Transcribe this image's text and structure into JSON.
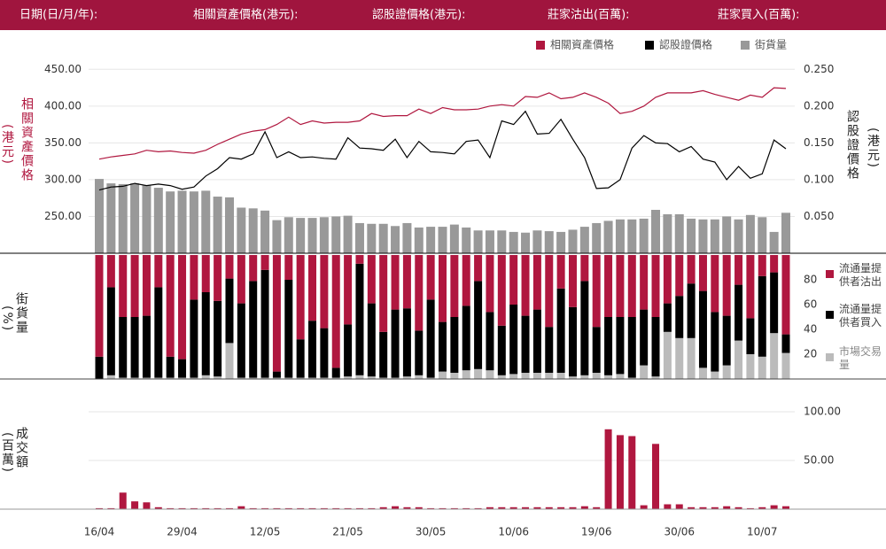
{
  "header": {
    "items": [
      "日期(日/月/年):",
      "相關資產價格(港元):",
      "認股證價格(港元):",
      "莊家沽出(百萬):",
      "莊家買入(百萬):"
    ]
  },
  "chart_data": [
    {
      "type": "line",
      "ylabel": "相關資產價格",
      "ylabel_unit": "(港元)",
      "y2label": "認股證價格",
      "y2label_unit": "(港元)",
      "ylim": [
        200,
        460
      ],
      "yticks": [
        {
          "value": 250,
          "label": "250.00"
        },
        {
          "value": 300,
          "label": "300.00"
        },
        {
          "value": 350,
          "label": "350.00"
        },
        {
          "value": 400,
          "label": "400.00"
        },
        {
          "value": 450,
          "label": "450.00"
        }
      ],
      "y2lim": [
        0,
        0.26
      ],
      "y2ticks": [
        {
          "value": 0.05,
          "label": "0.050"
        },
        {
          "value": 0.1,
          "label": "0.100"
        },
        {
          "value": 0.15,
          "label": "0.150"
        },
        {
          "value": 0.2,
          "label": "0.200"
        },
        {
          "value": 0.25,
          "label": "0.250"
        }
      ],
      "grid": true,
      "series": [
        {
          "name": "相關資產價格",
          "color": "#b0173f",
          "values": [
            328,
            331,
            333,
            335,
            340,
            338,
            339,
            337,
            336,
            340,
            348,
            355,
            362,
            366,
            368,
            375,
            385,
            375,
            380,
            377,
            378,
            378,
            380,
            390,
            386,
            387,
            387,
            396,
            390,
            398,
            395,
            395,
            396,
            400,
            402,
            400,
            413,
            412,
            418,
            410,
            412,
            418,
            412,
            404,
            390,
            393,
            400,
            412,
            418,
            418,
            418,
            421,
            416,
            412,
            408,
            415,
            412,
            425,
            424
          ]
        },
        {
          "name": "認股證價格",
          "color": "#000000",
          "axis": "y2",
          "values": [
            0.086,
            0.09,
            0.091,
            0.095,
            0.092,
            0.094,
            0.092,
            0.087,
            0.09,
            0.105,
            0.115,
            0.13,
            0.128,
            0.135,
            0.165,
            0.13,
            0.138,
            0.13,
            0.131,
            0.129,
            0.128,
            0.157,
            0.143,
            0.142,
            0.14,
            0.155,
            0.13,
            0.152,
            0.138,
            0.137,
            0.135,
            0.152,
            0.154,
            0.13,
            0.18,
            0.175,
            0.193,
            0.162,
            0.163,
            0.182,
            0.155,
            0.13,
            0.088,
            0.089,
            0.1,
            0.143,
            0.16,
            0.15,
            0.149,
            0.138,
            0.145,
            0.128,
            0.124,
            0.1,
            0.118,
            0.102,
            0.108,
            0.154,
            0.142
          ]
        },
        {
          "name": "街貨量",
          "color": "#999999",
          "type": "bar",
          "values": [
            301,
            295,
            294,
            295,
            292,
            289,
            284,
            285,
            284,
            285,
            277,
            276,
            262,
            261,
            258,
            245,
            249,
            248,
            248,
            249,
            250,
            251,
            241,
            240,
            240,
            237,
            241,
            235,
            236,
            236,
            239,
            235,
            231,
            231,
            231,
            229,
            228,
            231,
            230,
            229,
            232,
            236,
            241,
            244,
            246,
            246,
            247,
            259,
            253,
            253,
            247,
            246,
            246,
            250,
            246,
            252,
            249,
            229,
            255
          ]
        }
      ]
    },
    {
      "type": "stacked_bar",
      "ylabel": "街貨量",
      "ylabel_unit": "(%)",
      "ylim": [
        0,
        100
      ],
      "yticks": [
        20,
        40,
        60,
        80
      ],
      "series": [
        {
          "name": "市場交易量",
          "color": "#bbbbbb",
          "values": [
            0,
            3,
            1,
            1,
            1,
            1,
            1,
            1,
            1,
            3,
            2,
            29,
            1,
            1,
            1,
            1,
            1,
            1,
            1,
            1,
            1,
            2,
            3,
            2,
            1,
            1,
            2,
            3,
            1,
            6,
            5,
            7,
            8,
            7,
            3,
            4,
            5,
            5,
            5,
            5,
            2,
            3,
            5,
            3,
            4,
            1,
            11,
            2,
            38,
            33,
            33,
            9,
            6,
            11,
            31,
            20,
            18,
            37,
            21
          ]
        },
        {
          "name": "流通量提供者買入",
          "color": "#000000",
          "values": [
            18,
            71,
            49,
            49,
            50,
            73,
            17,
            15,
            63,
            67,
            61,
            52,
            60,
            78,
            87,
            5,
            79,
            31,
            46,
            40,
            8,
            42,
            90,
            59,
            37,
            55,
            55,
            36,
            63,
            40,
            45,
            52,
            71,
            47,
            40,
            56,
            46,
            51,
            37,
            68,
            56,
            76,
            37,
            47,
            46,
            49,
            45,
            48,
            23,
            34,
            44,
            62,
            48,
            40,
            45,
            29,
            65,
            49,
            15
          ]
        },
        {
          "name": "流通量提供者沽出",
          "color": "#b0173f",
          "values": [
            82,
            26,
            50,
            50,
            49,
            26,
            82,
            84,
            36,
            30,
            37,
            19,
            39,
            21,
            12,
            94,
            20,
            68,
            53,
            59,
            91,
            56,
            7,
            39,
            62,
            44,
            43,
            61,
            36,
            54,
            50,
            41,
            21,
            46,
            57,
            40,
            49,
            44,
            58,
            27,
            42,
            21,
            58,
            50,
            50,
            50,
            44,
            50,
            39,
            33,
            23,
            29,
            46,
            49,
            24,
            51,
            17,
            14,
            64
          ]
        }
      ]
    },
    {
      "type": "bar",
      "ylabel": "成交額",
      "ylabel_unit": "(百萬)",
      "ylim": [
        0,
        130
      ],
      "yticks": [
        {
          "value": 50,
          "label": "50.00"
        },
        {
          "value": 100,
          "label": "100.00"
        }
      ],
      "grid": true,
      "color": "#b0173f",
      "categories": [
        "16/04",
        null,
        null,
        null,
        null,
        null,
        null,
        "29/04",
        null,
        null,
        null,
        null,
        null,
        null,
        "12/05",
        null,
        null,
        null,
        null,
        null,
        null,
        "21/05",
        null,
        null,
        null,
        null,
        null,
        null,
        "30/05",
        null,
        null,
        null,
        null,
        null,
        null,
        "10/06",
        null,
        null,
        null,
        null,
        null,
        null,
        "19/06",
        null,
        null,
        null,
        null,
        null,
        null,
        "30/06",
        null,
        null,
        null,
        null,
        null,
        null,
        "10/07",
        null,
        null
      ],
      "values": [
        1,
        1,
        17,
        8,
        7,
        2,
        1,
        1,
        1,
        1,
        1,
        1,
        3,
        1,
        1,
        1,
        1,
        1,
        1,
        1,
        1,
        1,
        1,
        1,
        2,
        3,
        2,
        2,
        1,
        1,
        1,
        1,
        1,
        2,
        2,
        2,
        2,
        2,
        2,
        2,
        2,
        3,
        2,
        82,
        76,
        75,
        4,
        67,
        5,
        5,
        2,
        2,
        2,
        3,
        2,
        1,
        2,
        4,
        3
      ]
    }
  ]
}
